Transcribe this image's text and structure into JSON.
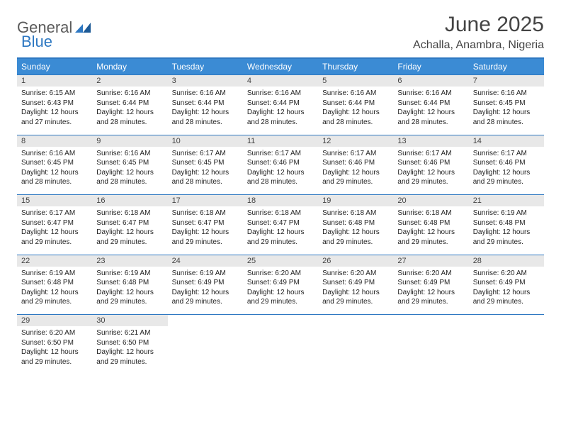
{
  "logo": {
    "text1": "General",
    "text2": "Blue"
  },
  "title": "June 2025",
  "location": "Achalla, Anambra, Nigeria",
  "colors": {
    "header_bg": "#3b8bd4",
    "header_text": "#ffffff",
    "border": "#2e78c2",
    "daynum_bg": "#e8e8e8",
    "text": "#222222",
    "logo_gray": "#5a5a5a",
    "logo_blue": "#2e78c2"
  },
  "typography": {
    "title_fontsize": 30,
    "location_fontsize": 16,
    "weekday_fontsize": 12,
    "daynum_fontsize": 11,
    "detail_fontsize": 10
  },
  "weekdays": [
    "Sunday",
    "Monday",
    "Tuesday",
    "Wednesday",
    "Thursday",
    "Friday",
    "Saturday"
  ],
  "weeks": [
    [
      {
        "n": "1",
        "sr": "6:15 AM",
        "ss": "6:43 PM",
        "dl": "12 hours and 27 minutes."
      },
      {
        "n": "2",
        "sr": "6:16 AM",
        "ss": "6:44 PM",
        "dl": "12 hours and 28 minutes."
      },
      {
        "n": "3",
        "sr": "6:16 AM",
        "ss": "6:44 PM",
        "dl": "12 hours and 28 minutes."
      },
      {
        "n": "4",
        "sr": "6:16 AM",
        "ss": "6:44 PM",
        "dl": "12 hours and 28 minutes."
      },
      {
        "n": "5",
        "sr": "6:16 AM",
        "ss": "6:44 PM",
        "dl": "12 hours and 28 minutes."
      },
      {
        "n": "6",
        "sr": "6:16 AM",
        "ss": "6:44 PM",
        "dl": "12 hours and 28 minutes."
      },
      {
        "n": "7",
        "sr": "6:16 AM",
        "ss": "6:45 PM",
        "dl": "12 hours and 28 minutes."
      }
    ],
    [
      {
        "n": "8",
        "sr": "6:16 AM",
        "ss": "6:45 PM",
        "dl": "12 hours and 28 minutes."
      },
      {
        "n": "9",
        "sr": "6:16 AM",
        "ss": "6:45 PM",
        "dl": "12 hours and 28 minutes."
      },
      {
        "n": "10",
        "sr": "6:17 AM",
        "ss": "6:45 PM",
        "dl": "12 hours and 28 minutes."
      },
      {
        "n": "11",
        "sr": "6:17 AM",
        "ss": "6:46 PM",
        "dl": "12 hours and 28 minutes."
      },
      {
        "n": "12",
        "sr": "6:17 AM",
        "ss": "6:46 PM",
        "dl": "12 hours and 29 minutes."
      },
      {
        "n": "13",
        "sr": "6:17 AM",
        "ss": "6:46 PM",
        "dl": "12 hours and 29 minutes."
      },
      {
        "n": "14",
        "sr": "6:17 AM",
        "ss": "6:46 PM",
        "dl": "12 hours and 29 minutes."
      }
    ],
    [
      {
        "n": "15",
        "sr": "6:17 AM",
        "ss": "6:47 PM",
        "dl": "12 hours and 29 minutes."
      },
      {
        "n": "16",
        "sr": "6:18 AM",
        "ss": "6:47 PM",
        "dl": "12 hours and 29 minutes."
      },
      {
        "n": "17",
        "sr": "6:18 AM",
        "ss": "6:47 PM",
        "dl": "12 hours and 29 minutes."
      },
      {
        "n": "18",
        "sr": "6:18 AM",
        "ss": "6:47 PM",
        "dl": "12 hours and 29 minutes."
      },
      {
        "n": "19",
        "sr": "6:18 AM",
        "ss": "6:48 PM",
        "dl": "12 hours and 29 minutes."
      },
      {
        "n": "20",
        "sr": "6:18 AM",
        "ss": "6:48 PM",
        "dl": "12 hours and 29 minutes."
      },
      {
        "n": "21",
        "sr": "6:19 AM",
        "ss": "6:48 PM",
        "dl": "12 hours and 29 minutes."
      }
    ],
    [
      {
        "n": "22",
        "sr": "6:19 AM",
        "ss": "6:48 PM",
        "dl": "12 hours and 29 minutes."
      },
      {
        "n": "23",
        "sr": "6:19 AM",
        "ss": "6:48 PM",
        "dl": "12 hours and 29 minutes."
      },
      {
        "n": "24",
        "sr": "6:19 AM",
        "ss": "6:49 PM",
        "dl": "12 hours and 29 minutes."
      },
      {
        "n": "25",
        "sr": "6:20 AM",
        "ss": "6:49 PM",
        "dl": "12 hours and 29 minutes."
      },
      {
        "n": "26",
        "sr": "6:20 AM",
        "ss": "6:49 PM",
        "dl": "12 hours and 29 minutes."
      },
      {
        "n": "27",
        "sr": "6:20 AM",
        "ss": "6:49 PM",
        "dl": "12 hours and 29 minutes."
      },
      {
        "n": "28",
        "sr": "6:20 AM",
        "ss": "6:49 PM",
        "dl": "12 hours and 29 minutes."
      }
    ],
    [
      {
        "n": "29",
        "sr": "6:20 AM",
        "ss": "6:50 PM",
        "dl": "12 hours and 29 minutes."
      },
      {
        "n": "30",
        "sr": "6:21 AM",
        "ss": "6:50 PM",
        "dl": "12 hours and 29 minutes."
      },
      null,
      null,
      null,
      null,
      null
    ]
  ],
  "labels": {
    "sunrise": "Sunrise:",
    "sunset": "Sunset:",
    "daylight": "Daylight:"
  }
}
